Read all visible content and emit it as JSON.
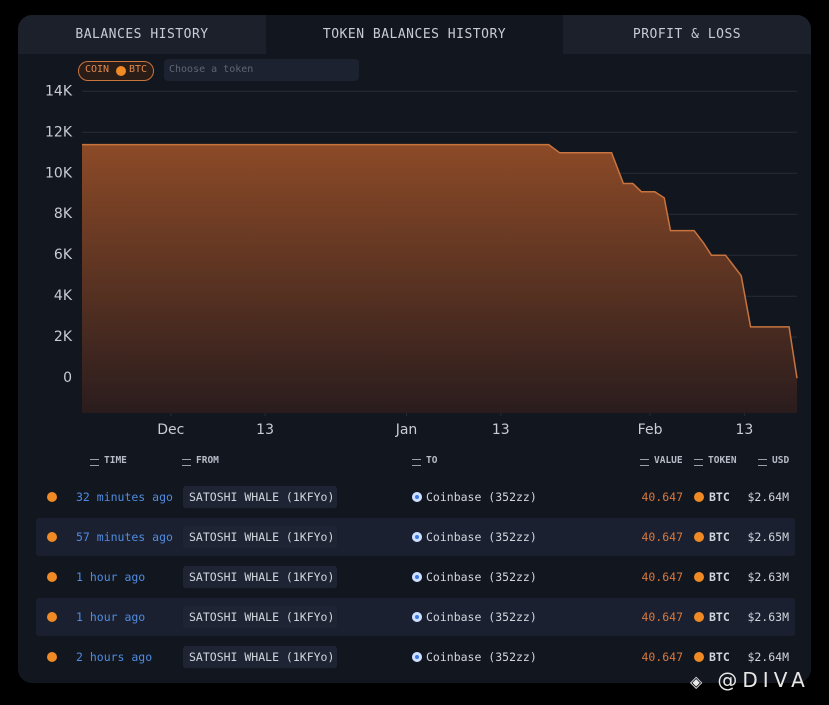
{
  "tabs": [
    "BALANCES HISTORY",
    "TOKEN BALANCES HISTORY",
    "PROFIT & LOSS"
  ],
  "active_tab": 1,
  "filter": {
    "coin_label": "COIN",
    "coin": "BTC",
    "placeholder": "Choose a token"
  },
  "chart_data": {
    "type": "area",
    "color": "#c8743e",
    "x": [
      -11.3,
      48.1,
      49.5,
      56.1,
      57.6,
      58.8,
      59.9,
      61.6,
      62.8,
      63.6,
      66.6,
      67.8,
      68.8,
      70.6,
      71.6,
      72.6,
      73.8,
      78.7,
      79.7
    ],
    "values": [
      11400,
      11400,
      11000,
      11000,
      9500,
      9500,
      9100,
      9100,
      8800,
      7200,
      7200,
      6600,
      6000,
      6000,
      5500,
      5000,
      2500,
      2500,
      0
    ],
    "xlim": [
      -11.3,
      79.7
    ],
    "xticks": [
      {
        "value": 0,
        "label": "Dec"
      },
      {
        "value": 12,
        "label": "13"
      },
      {
        "value": 30,
        "label": "Jan"
      },
      {
        "value": 42,
        "label": "13"
      },
      {
        "value": 61,
        "label": "Feb"
      },
      {
        "value": 73,
        "label": "13"
      }
    ],
    "ylim": [
      -1700,
      14600
    ],
    "yticks": [
      0,
      {
        "value": 2000,
        "label": "2K"
      },
      {
        "value": 4000,
        "label": "4K"
      },
      {
        "value": 6000,
        "label": "6K"
      },
      {
        "value": 8000,
        "label": "8K"
      },
      {
        "value": 10000,
        "label": "10K"
      },
      {
        "value": 12000,
        "label": "12K"
      },
      {
        "value": 14000,
        "label": "14K"
      }
    ],
    "grid": true
  },
  "table": {
    "columns": [
      "TIME",
      "FROM",
      "TO",
      "VALUE",
      "TOKEN",
      "USD"
    ],
    "rows": [
      [
        "32 minutes ago",
        "SATOSHI WHALE (1KFYo)",
        "Coinbase (352zz)",
        "40.647",
        "BTC",
        "$2.64M"
      ],
      [
        "57 minutes ago",
        "SATOSHI WHALE (1KFYo)",
        "Coinbase (352zz)",
        "40.647",
        "BTC",
        "$2.65M"
      ],
      [
        "1 hour ago",
        "SATOSHI WHALE (1KFYo)",
        "Coinbase (352zz)",
        "40.647",
        "BTC",
        "$2.63M"
      ],
      [
        "1 hour ago",
        "SATOSHI WHALE (1KFYo)",
        "Coinbase (352zz)",
        "40.647",
        "BTC",
        "$2.63M"
      ],
      [
        "2 hours ago",
        "SATOSHI WHALE (1KFYo)",
        "Coinbase (352zz)",
        "40.647",
        "BTC",
        "$2.64M"
      ]
    ]
  },
  "watermark": "@DIVA"
}
